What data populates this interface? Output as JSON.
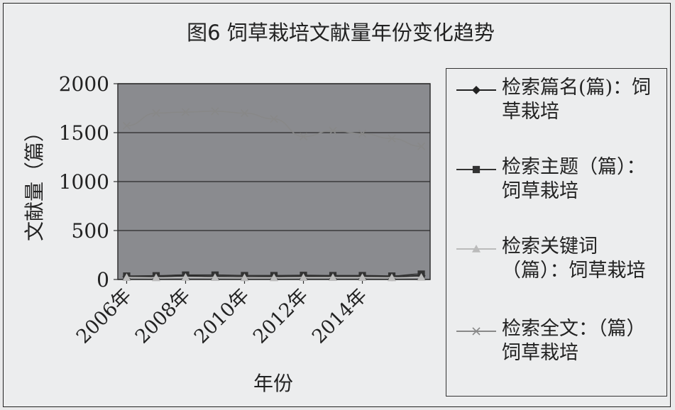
{
  "chart_data": {
    "type": "line",
    "title": "图6  饲草栽培文献量年份变化趋势",
    "xlabel": "年份",
    "ylabel": "文献量（篇）",
    "ylim": [
      0,
      2000
    ],
    "yticks": [
      0,
      500,
      1000,
      1500,
      2000
    ],
    "x": [
      2006,
      2007,
      2008,
      2009,
      2010,
      2011,
      2012,
      2013,
      2014,
      2015,
      2016
    ],
    "xtick_labels": [
      "2006年",
      "2008年",
      "2010年",
      "2012年",
      "2014年"
    ],
    "xtick_positions": [
      2006,
      2008,
      2010,
      2012,
      2014
    ],
    "grid": "horizontal",
    "legend_position": "right",
    "series": [
      {
        "name": "检索篇名(篇)：饲草栽培",
        "marker": "diamond",
        "color": "#222222",
        "values": [
          30,
          28,
          35,
          30,
          25,
          28,
          30,
          30,
          32,
          25,
          38
        ]
      },
      {
        "name": "检索主题（篇）：饲草栽培",
        "marker": "square",
        "color": "#333333",
        "values": [
          35,
          38,
          45,
          45,
          40,
          40,
          42,
          40,
          40,
          35,
          55
        ]
      },
      {
        "name": "检索关键词（篇）：饲草栽培",
        "marker": "triangle",
        "color": "#bbbbbb",
        "values": [
          20,
          18,
          22,
          20,
          18,
          18,
          20,
          20,
          20,
          18,
          22
        ]
      },
      {
        "name": "检索全文：（篇）饲草栽培",
        "marker": "x",
        "color": "#888888",
        "values": [
          1570,
          1700,
          1710,
          1720,
          1700,
          1640,
          1460,
          1520,
          1490,
          1440,
          1360
        ]
      }
    ]
  }
}
